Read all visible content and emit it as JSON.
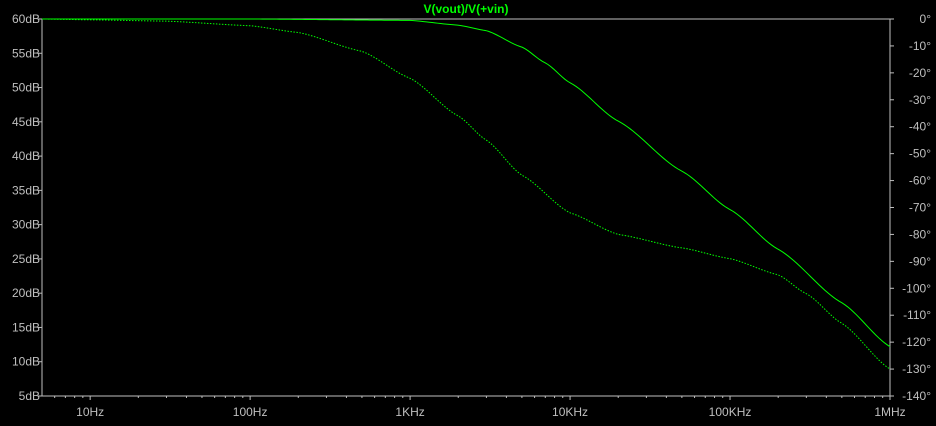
{
  "chart_data": {
    "type": "line",
    "title": "V(vout)/V(+vin)",
    "x_scale": "log",
    "x_range_hz": [
      5,
      1000000
    ],
    "x_ticks": [
      {
        "value": 10,
        "label": "10Hz"
      },
      {
        "value": 100,
        "label": "100Hz"
      },
      {
        "value": 1000,
        "label": "1KHz"
      },
      {
        "value": 10000,
        "label": "10KHz"
      },
      {
        "value": 100000,
        "label": "100KHz"
      },
      {
        "value": 1000000,
        "label": "1MHz"
      }
    ],
    "y_left": {
      "unit": "dB",
      "range": [
        5,
        60
      ],
      "ticks": [
        {
          "value": 60,
          "label": "60dB"
        },
        {
          "value": 55,
          "label": "55dB"
        },
        {
          "value": 50,
          "label": "50dB"
        },
        {
          "value": 45,
          "label": "45dB"
        },
        {
          "value": 40,
          "label": "40dB"
        },
        {
          "value": 35,
          "label": "35dB"
        },
        {
          "value": 30,
          "label": "30dB"
        },
        {
          "value": 25,
          "label": "25dB"
        },
        {
          "value": 20,
          "label": "20dB"
        },
        {
          "value": 15,
          "label": "15dB"
        },
        {
          "value": 10,
          "label": "10dB"
        },
        {
          "value": 5,
          "label": "5dB"
        }
      ]
    },
    "y_right": {
      "unit": "°",
      "range": [
        -140,
        0
      ],
      "ticks": [
        {
          "value": 0,
          "label": "0°"
        },
        {
          "value": -10,
          "label": "-10°"
        },
        {
          "value": -20,
          "label": "-20°"
        },
        {
          "value": -30,
          "label": "-30°"
        },
        {
          "value": -40,
          "label": "-40°"
        },
        {
          "value": -50,
          "label": "-50°"
        },
        {
          "value": -60,
          "label": "-60°"
        },
        {
          "value": -70,
          "label": "-70°"
        },
        {
          "value": -80,
          "label": "-80°"
        },
        {
          "value": -90,
          "label": "-90°"
        },
        {
          "value": -100,
          "label": "-100°"
        },
        {
          "value": -110,
          "label": "-110°"
        },
        {
          "value": -120,
          "label": "-120°"
        },
        {
          "value": -130,
          "label": "-130°"
        },
        {
          "value": -140,
          "label": "-140°"
        }
      ]
    },
    "grid": false,
    "series": [
      {
        "kind": "magnitude",
        "axis": "left",
        "style": "solid",
        "color": "#00ff00",
        "x": [
          5,
          10,
          100,
          1000,
          2000,
          3000,
          5000,
          7000,
          10000,
          20000,
          50000,
          100000,
          200000,
          500000,
          1000000
        ],
        "y": [
          60,
          60,
          60,
          59.8,
          59.1,
          58.3,
          55.9,
          53.6,
          50.7,
          45.1,
          37.8,
          32.2,
          26.4,
          18.6,
          12.2
        ]
      },
      {
        "kind": "phase",
        "axis": "right",
        "style": "dotted",
        "color": "#00ff00",
        "x": [
          5,
          10,
          30,
          100,
          200,
          500,
          1000,
          2000,
          3000,
          5000,
          10000,
          20000,
          50000,
          100000,
          200000,
          300000,
          500000,
          1000000
        ],
        "y": [
          0,
          -0.3,
          -0.8,
          -2.5,
          -5,
          -12,
          -22,
          -36,
          -45,
          -58,
          -72,
          -80,
          -85,
          -89,
          -95,
          -102,
          -113,
          -130
        ]
      }
    ]
  }
}
